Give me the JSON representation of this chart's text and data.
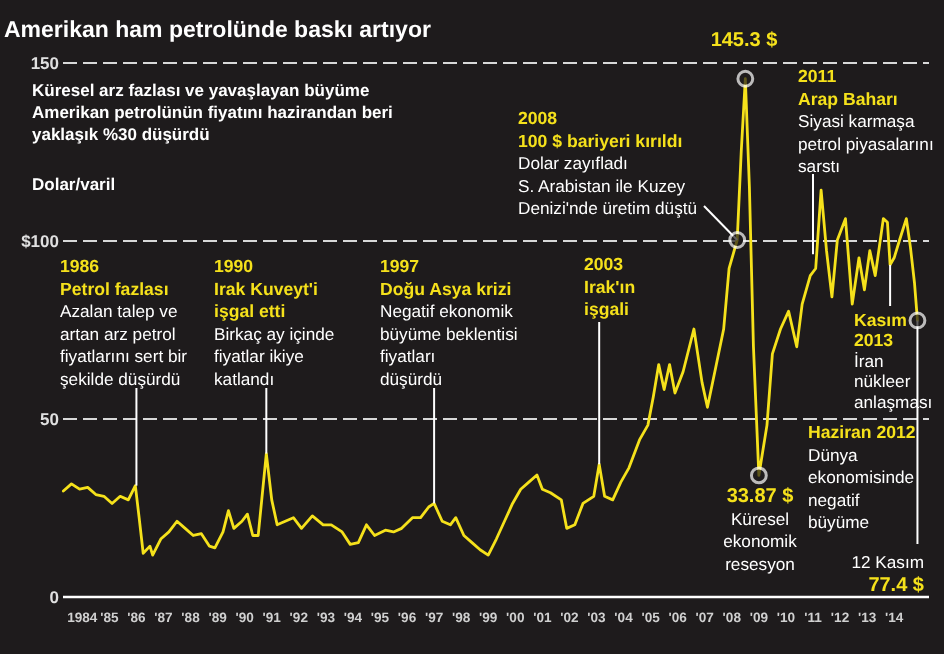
{
  "chart_data": {
    "type": "line",
    "title": "Amerikan ham petrolünde baskı artıyor",
    "subtitle": "Küresel arz fazlası ve yavaşlayan büyüme\nAmerikan petrolünün fiyatını hazirandan beri\nyaklaşık %30 düşürdü",
    "ylabel": "Dolar/varil",
    "x": [
      1983.3,
      1983.6,
      1983.9,
      1984.2,
      1984.5,
      1984.8,
      1985.1,
      1985.4,
      1985.7,
      1985.96,
      1986.1,
      1986.25,
      1986.5,
      1986.6,
      1986.9,
      1987.2,
      1987.5,
      1987.8,
      1988.1,
      1988.4,
      1988.7,
      1988.9,
      1989.2,
      1989.4,
      1989.6,
      1989.9,
      1990.1,
      1990.3,
      1990.5,
      1990.8,
      1991.0,
      1991.2,
      1991.5,
      1991.8,
      1992.1,
      1992.5,
      1992.9,
      1993.2,
      1993.6,
      1993.9,
      1994.2,
      1994.5,
      1994.8,
      1995.2,
      1995.5,
      1995.8,
      1996.2,
      1996.5,
      1996.8,
      1997.0,
      1997.3,
      1997.6,
      1997.8,
      1998.1,
      1998.4,
      1998.7,
      1999.0,
      1999.3,
      1999.6,
      1999.9,
      2000.2,
      2000.5,
      2000.8,
      2001.0,
      2001.3,
      2001.7,
      2001.9,
      2002.2,
      2002.5,
      2002.9,
      2003.1,
      2003.3,
      2003.6,
      2003.9,
      2004.2,
      2004.6,
      2004.9,
      2005.1,
      2005.3,
      2005.5,
      2005.7,
      2005.9,
      2006.2,
      2006.6,
      2006.9,
      2007.1,
      2007.4,
      2007.7,
      2007.9,
      2008.2,
      2008.35,
      2008.5,
      2008.65,
      2008.8,
      2009.0,
      2009.3,
      2009.5,
      2009.8,
      2010.1,
      2010.4,
      2010.6,
      2010.9,
      2011.1,
      2011.3,
      2011.5,
      2011.7,
      2011.9,
      2012.2,
      2012.45,
      2012.7,
      2012.9,
      2013.1,
      2013.3,
      2013.6,
      2013.75,
      2013.85,
      2014.0,
      2014.2,
      2014.45,
      2014.6,
      2014.75,
      2014.86
    ],
    "series": [
      {
        "color": "#f5e11b",
        "values": [
          29.5,
          31.5,
          30,
          30.5,
          28.5,
          28,
          26,
          28,
          27,
          31,
          22,
          12,
          14,
          11.5,
          16,
          18,
          21,
          19,
          17,
          17.5,
          14,
          13.5,
          18,
          24,
          19,
          21,
          23,
          17,
          17,
          40,
          27,
          20,
          21,
          22,
          19,
          22.5,
          20,
          20,
          18,
          14.5,
          15,
          20,
          17,
          18.5,
          18,
          19,
          22,
          22,
          25,
          26,
          21,
          20,
          22,
          17,
          15,
          13,
          11.5,
          16,
          21,
          26,
          30,
          32,
          34,
          30,
          29,
          27,
          19,
          20,
          26,
          28,
          37,
          28,
          27,
          32,
          36,
          44,
          48,
          56,
          65,
          58,
          65,
          57,
          63,
          75,
          60,
          53,
          64,
          75,
          92,
          100,
          125,
          145.3,
          115,
          70,
          33.87,
          48,
          68,
          75,
          80,
          70,
          82,
          90,
          92,
          114,
          97,
          84,
          100,
          106,
          82,
          95,
          86,
          97,
          90,
          106,
          105,
          93,
          95,
          100,
          106,
          98,
          88,
          77.4
        ]
      }
    ],
    "xlim": [
      1983.25,
      2015.25
    ],
    "xticks": [
      {
        "value": 1984,
        "label": "1984"
      },
      {
        "value": 1985,
        "label": "'85"
      },
      {
        "value": 1986,
        "label": "'86"
      },
      {
        "value": 1987,
        "label": "'87"
      },
      {
        "value": 1988,
        "label": "'88"
      },
      {
        "value": 1989,
        "label": "'89"
      },
      {
        "value": 1990,
        "label": "'90"
      },
      {
        "value": 1991,
        "label": "'91"
      },
      {
        "value": 1992,
        "label": "'92"
      },
      {
        "value": 1993,
        "label": "'93"
      },
      {
        "value": 1994,
        "label": "'94"
      },
      {
        "value": 1995,
        "label": "'95"
      },
      {
        "value": 1996,
        "label": "'96"
      },
      {
        "value": 1997,
        "label": "'97"
      },
      {
        "value": 1998,
        "label": "'98"
      },
      {
        "value": 1999,
        "label": "'99"
      },
      {
        "value": 2000,
        "label": "'00"
      },
      {
        "value": 2001,
        "label": "'01"
      },
      {
        "value": 2002,
        "label": "'02"
      },
      {
        "value": 2003,
        "label": "'03"
      },
      {
        "value": 2004,
        "label": "'04"
      },
      {
        "value": 2005,
        "label": "'05"
      },
      {
        "value": 2006,
        "label": "'06"
      },
      {
        "value": 2007,
        "label": "'07"
      },
      {
        "value": 2008,
        "label": "'08"
      },
      {
        "value": 2009,
        "label": "'09"
      },
      {
        "value": 2010,
        "label": "'10"
      },
      {
        "value": 2011,
        "label": "'11"
      },
      {
        "value": 2012,
        "label": "'12"
      },
      {
        "value": 2013,
        "label": "'13"
      },
      {
        "value": 2014,
        "label": "'14"
      }
    ],
    "ylim": [
      0,
      150
    ],
    "yticks": [
      0,
      50,
      {
        "value": 100,
        "label": "$100"
      },
      150
    ],
    "grid": "y",
    "annotations": [
      {
        "text": "1986\nPetrol fazlası\nAzalan talep ve\nartan arz petrol\nfiyatlarını sert bir\nşekilde düşürdü",
        "x": 1986,
        "y": 31
      },
      {
        "text": "1990\nIrak Kuveyt'i\nişgal etti\nBirkaç ay içinde\nfiyatlar ikiye\nkatlandı",
        "x": 1990.8,
        "y": 40
      },
      {
        "text": "1997\nDoğu Asya krizi\nNegatif ekonomik\nbüyüme beklentisi\nfiyatları\ndüşürdü",
        "x": 1997,
        "y": 26
      },
      {
        "text": "2003\nIrak'ın\nişgali",
        "x": 2003.1,
        "y": 37
      },
      {
        "text": "2008\n100 $ bariyeri kırıldı\nDolar zayıfladı\nS. Arabistan ile Kuzey\nDenizi'nde üretim düştü",
        "x": 2008.2,
        "y": 100
      },
      {
        "text": "145.3 $",
        "x": 2008.5,
        "y": 145.3
      },
      {
        "text": "2011\nArap Baharı\nSiyasi karmaşa\npetrol piyasalarını\nsarstı",
        "x": 2011,
        "y": 96
      },
      {
        "text": "Kasım\n2013\nİran\nnükleer\nanlaşması",
        "x": 2013.85,
        "y": 93
      },
      "Haziran 2012\nDünya\nekonomisinde\nnegatif\nbüyüme",
      {
        "text": "33.87 $\nKüresel\nekonomik\nresesyon",
        "x": 2009,
        "y": 33.87
      },
      {
        "text": "12 Kasım\n77.4 $",
        "x": 2014.86,
        "y": 77.4
      }
    ]
  }
}
